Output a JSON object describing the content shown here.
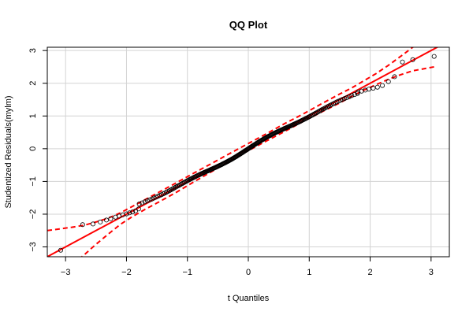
{
  "chart_data": {
    "type": "scatter",
    "title": "QQ Plot",
    "xlabel": "t Quantiles",
    "ylabel": "Studentized Residuals(mylm)",
    "xlim": [
      -3.3,
      3.3
    ],
    "ylim": [
      -3.3,
      3.1
    ],
    "x_ticks": [
      -3,
      -2,
      -1,
      0,
      1,
      2,
      3
    ],
    "y_ticks": [
      -3,
      -2,
      -1,
      0,
      1,
      2,
      3
    ],
    "x_tick_labels": [
      "−3",
      "−2",
      "−1",
      "0",
      "1",
      "2",
      "3"
    ],
    "y_tick_labels": [
      "−3",
      "−2",
      "−1",
      "0",
      "1",
      "2",
      "3"
    ],
    "grid": true,
    "points_outer": [
      [
        -3.08,
        -3.1
      ],
      [
        -2.72,
        -2.32
      ],
      [
        -2.55,
        -2.3
      ],
      [
        -2.43,
        -2.24
      ],
      [
        -2.33,
        -2.18
      ],
      [
        -2.26,
        -2.14
      ],
      [
        -2.18,
        -2.09
      ],
      [
        -2.12,
        -2.06
      ],
      [
        -2.06,
        -2.02
      ],
      [
        -2.0,
        -1.99
      ],
      [
        -1.95,
        -1.96
      ],
      [
        -1.9,
        -1.93
      ],
      [
        -1.85,
        -1.9
      ],
      [
        -1.8,
        -1.84
      ],
      [
        1.8,
        1.73
      ],
      [
        1.86,
        1.76
      ],
      [
        1.92,
        1.79
      ],
      [
        1.98,
        1.82
      ],
      [
        2.05,
        1.85
      ],
      [
        2.12,
        1.88
      ],
      [
        2.2,
        1.93
      ],
      [
        2.3,
        2.05
      ],
      [
        2.4,
        2.2
      ],
      [
        2.53,
        2.65
      ],
      [
        2.7,
        2.72
      ],
      [
        3.05,
        2.82
      ]
    ],
    "reference_line": {
      "slope": 1.0,
      "intercept": 0.0,
      "color": "#ff0000"
    },
    "envelope": {
      "x": [
        -3.3,
        -3.1,
        -2.9,
        -2.7,
        -2.5,
        -2.3,
        -2.1,
        -1.9,
        -1.7,
        -1.5,
        -1.2,
        -0.9,
        -0.6,
        -0.3,
        0.0,
        0.3,
        0.6,
        0.9,
        1.2,
        1.5,
        1.7,
        1.9,
        2.1,
        2.3,
        2.5,
        2.7,
        3.05
      ],
      "lower": [
        -4.1,
        -3.85,
        -3.57,
        -3.25,
        -2.92,
        -2.61,
        -2.31,
        -2.07,
        -1.86,
        -1.66,
        -1.35,
        -1.02,
        -0.7,
        -0.37,
        -0.06,
        0.24,
        0.53,
        0.83,
        1.12,
        1.4,
        1.6,
        1.79,
        1.96,
        2.12,
        2.26,
        2.38,
        2.5
      ],
      "upper": [
        -2.5,
        -2.45,
        -2.4,
        -2.34,
        -2.24,
        -2.12,
        -1.96,
        -1.76,
        -1.56,
        -1.36,
        -1.06,
        -0.75,
        -0.45,
        -0.14,
        0.16,
        0.46,
        0.77,
        1.06,
        1.37,
        1.67,
        1.86,
        2.08,
        2.3,
        2.55,
        2.82,
        3.1,
        3.5
      ],
      "color": "#ff0000"
    },
    "point_color": "#000000"
  }
}
